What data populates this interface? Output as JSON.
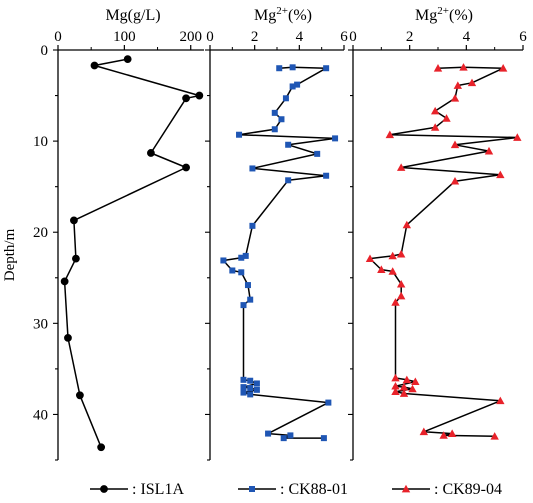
{
  "y_axis_label": "Depth/m",
  "legend": [
    {
      "marker": "circle",
      "color": "#000000",
      "line": "#000000",
      "label": ": ISL1A"
    },
    {
      "marker": "square",
      "color": "#1f56b4",
      "line": "#000000",
      "label": ": CK88-01"
    },
    {
      "marker": "triangle",
      "color": "#e8222a",
      "line": "#000000",
      "label": ": CK89-04"
    }
  ],
  "chart_data": [
    {
      "type": "line",
      "title": "Mg(g/L)",
      "xlim": [
        0,
        220
      ],
      "xticks": [
        0,
        100,
        200
      ],
      "ylim": [
        0,
        45
      ],
      "yticks": [
        0,
        10,
        20,
        30,
        40
      ],
      "y_inverted": true,
      "series": [
        {
          "name": "ISL1A",
          "marker": "circle",
          "color": "#000000",
          "points": [
            {
              "x": 105,
              "y": 1.0
            },
            {
              "x": 55,
              "y": 1.7
            },
            {
              "x": 213,
              "y": 5.0
            },
            {
              "x": 193,
              "y": 5.3
            },
            {
              "x": 140,
              "y": 11.3
            },
            {
              "x": 193,
              "y": 12.9
            },
            {
              "x": 24,
              "y": 18.7
            },
            {
              "x": 27,
              "y": 22.9
            },
            {
              "x": 10,
              "y": 25.4
            },
            {
              "x": 15,
              "y": 31.6
            },
            {
              "x": 33,
              "y": 37.9
            },
            {
              "x": 65,
              "y": 43.6
            }
          ]
        }
      ]
    },
    {
      "type": "line",
      "title": "Mg²⁺(%)",
      "title_main": "Mg",
      "title_sup": "2+",
      "title_tail": "(%)",
      "xlim": [
        0,
        6
      ],
      "xticks": [
        0,
        2,
        4,
        6
      ],
      "ylim": [
        0,
        45
      ],
      "y_inverted": true,
      "series": [
        {
          "name": "CK88-01",
          "marker": "square",
          "color": "#1f56b4",
          "points": [
            {
              "x": 3.1,
              "y": 2.0
            },
            {
              "x": 3.7,
              "y": 1.9
            },
            {
              "x": 5.2,
              "y": 2.0
            },
            {
              "x": 3.9,
              "y": 3.8
            },
            {
              "x": 3.7,
              "y": 4.0
            },
            {
              "x": 3.4,
              "y": 5.3
            },
            {
              "x": 2.9,
              "y": 6.9
            },
            {
              "x": 3.2,
              "y": 7.6
            },
            {
              "x": 2.9,
              "y": 8.7
            },
            {
              "x": 1.3,
              "y": 9.3
            },
            {
              "x": 5.6,
              "y": 9.7
            },
            {
              "x": 3.5,
              "y": 10.4
            },
            {
              "x": 4.8,
              "y": 11.4
            },
            {
              "x": 1.9,
              "y": 13.0
            },
            {
              "x": 5.2,
              "y": 13.8
            },
            {
              "x": 3.5,
              "y": 14.3
            },
            {
              "x": 1.9,
              "y": 19.3
            },
            {
              "x": 1.6,
              "y": 22.6
            },
            {
              "x": 1.4,
              "y": 22.8
            },
            {
              "x": 0.6,
              "y": 23.1
            },
            {
              "x": 1.0,
              "y": 24.2
            },
            {
              "x": 1.4,
              "y": 24.4
            },
            {
              "x": 1.7,
              "y": 25.8
            },
            {
              "x": 1.8,
              "y": 27.4
            },
            {
              "x": 1.5,
              "y": 28.0
            },
            {
              "x": 1.5,
              "y": 36.2
            },
            {
              "x": 1.8,
              "y": 36.3
            },
            {
              "x": 2.1,
              "y": 36.6
            },
            {
              "x": 1.5,
              "y": 37.0
            },
            {
              "x": 1.8,
              "y": 37.1
            },
            {
              "x": 2.1,
              "y": 37.3
            },
            {
              "x": 1.5,
              "y": 37.6
            },
            {
              "x": 1.8,
              "y": 37.8
            },
            {
              "x": 5.3,
              "y": 38.7
            },
            {
              "x": 2.6,
              "y": 42.1
            },
            {
              "x": 3.6,
              "y": 42.3
            },
            {
              "x": 3.3,
              "y": 42.6
            },
            {
              "x": 5.1,
              "y": 42.6
            }
          ]
        }
      ]
    },
    {
      "type": "line",
      "title": "Mg²⁺(%)",
      "title_main": "Mg",
      "title_sup": "2+",
      "title_tail": "(%)",
      "xlim": [
        0,
        6
      ],
      "xticks": [
        0,
        2,
        4,
        6
      ],
      "ylim": [
        0,
        45
      ],
      "y_inverted": true,
      "series": [
        {
          "name": "CK89-04",
          "marker": "triangle",
          "color": "#e8222a",
          "points": [
            {
              "x": 3.0,
              "y": 2.0
            },
            {
              "x": 3.9,
              "y": 1.9
            },
            {
              "x": 5.3,
              "y": 2.0
            },
            {
              "x": 4.2,
              "y": 3.6
            },
            {
              "x": 3.7,
              "y": 3.9
            },
            {
              "x": 3.6,
              "y": 5.3
            },
            {
              "x": 2.9,
              "y": 6.7
            },
            {
              "x": 3.3,
              "y": 7.5
            },
            {
              "x": 2.9,
              "y": 8.5
            },
            {
              "x": 1.3,
              "y": 9.3
            },
            {
              "x": 5.8,
              "y": 9.6
            },
            {
              "x": 3.6,
              "y": 10.4
            },
            {
              "x": 4.8,
              "y": 11.1
            },
            {
              "x": 1.7,
              "y": 12.9
            },
            {
              "x": 5.2,
              "y": 13.7
            },
            {
              "x": 3.6,
              "y": 14.4
            },
            {
              "x": 1.9,
              "y": 19.2
            },
            {
              "x": 1.7,
              "y": 22.4
            },
            {
              "x": 1.4,
              "y": 22.6
            },
            {
              "x": 0.6,
              "y": 22.9
            },
            {
              "x": 1.0,
              "y": 24.1
            },
            {
              "x": 1.4,
              "y": 24.3
            },
            {
              "x": 1.7,
              "y": 25.7
            },
            {
              "x": 1.7,
              "y": 27.0
            },
            {
              "x": 1.5,
              "y": 27.7
            },
            {
              "x": 1.5,
              "y": 36.0
            },
            {
              "x": 1.9,
              "y": 36.2
            },
            {
              "x": 2.2,
              "y": 36.4
            },
            {
              "x": 1.5,
              "y": 36.9
            },
            {
              "x": 1.8,
              "y": 37.0
            },
            {
              "x": 2.1,
              "y": 37.2
            },
            {
              "x": 1.5,
              "y": 37.5
            },
            {
              "x": 1.8,
              "y": 37.7
            },
            {
              "x": 5.2,
              "y": 38.5
            },
            {
              "x": 2.5,
              "y": 41.9
            },
            {
              "x": 3.5,
              "y": 42.1
            },
            {
              "x": 3.2,
              "y": 42.3
            },
            {
              "x": 5.0,
              "y": 42.4
            }
          ]
        }
      ]
    }
  ]
}
